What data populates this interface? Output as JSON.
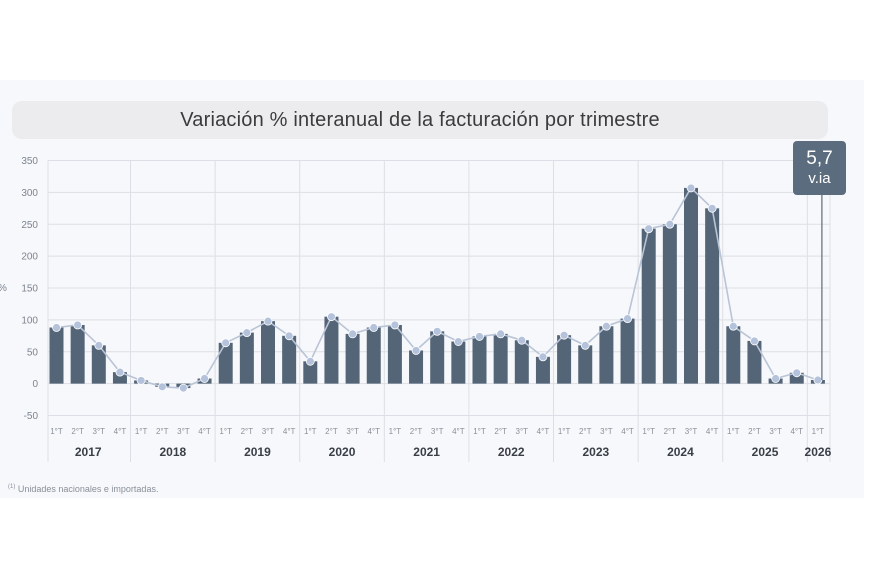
{
  "chart_data": {
    "type": "bar",
    "title": "Variación % interanual de la facturación por trimestre",
    "ylabel": "%",
    "ylim": [
      -50,
      350
    ],
    "yticks": [
      -50,
      0,
      50,
      100,
      150,
      200,
      250,
      300,
      350
    ],
    "grid": true,
    "years": [
      "2017",
      "2018",
      "2019",
      "2020",
      "2021",
      "2022",
      "2023",
      "2024",
      "2025",
      "2026"
    ],
    "quarter_labels": [
      "1°T",
      "2°T",
      "3°T",
      "4°T"
    ],
    "categories": [
      "2017 1°T",
      "2017 2°T",
      "2017 3°T",
      "2017 4°T",
      "2018 1°T",
      "2018 2°T",
      "2018 3°T",
      "2018 4°T",
      "2019 1°T",
      "2019 2°T",
      "2019 3°T",
      "2019 4°T",
      "2020 1°T",
      "2020 2°T",
      "2020 3°T",
      "2020 4°T",
      "2021 1°T",
      "2021 2°T",
      "2021 3°T",
      "2021 4°T",
      "2022 1°T",
      "2022 2°T",
      "2022 3°T",
      "2022 4°T",
      "2023 1°T",
      "2023 2°T",
      "2023 3°T",
      "2023 4°T",
      "2024 1°T",
      "2024 2°T",
      "2024 3°T",
      "2024 4°T",
      "2025 1°T",
      "2025 2°T",
      "2025 3°T",
      "2025 4°T",
      "2026 1°T"
    ],
    "series": [
      {
        "type": "bar",
        "values": [
          88,
          92,
          60,
          18,
          5,
          -5,
          -7,
          8,
          64,
          80,
          98,
          75,
          35,
          105,
          78,
          88,
          92,
          52,
          82,
          66,
          74,
          78,
          68,
          42,
          76,
          60,
          90,
          102,
          243,
          250,
          307,
          275,
          90,
          67,
          8,
          17,
          5.7
        ]
      },
      {
        "type": "line",
        "values": [
          88,
          92,
          60,
          18,
          5,
          -5,
          -7,
          8,
          64,
          80,
          98,
          75,
          35,
          105,
          78,
          88,
          92,
          52,
          82,
          66,
          74,
          78,
          68,
          42,
          76,
          60,
          90,
          102,
          243,
          250,
          307,
          275,
          90,
          67,
          8,
          17,
          5.7
        ]
      }
    ],
    "colors": {
      "bar": "#546578",
      "line": "#b9c4d6",
      "marker": "#b4c3db",
      "grid": "#dcdfe5"
    },
    "highlight": {
      "value": "5,7",
      "unit": "v.ia"
    },
    "footnote": {
      "marker": "(1)",
      "text": "Unidades nacionales e importadas."
    }
  }
}
